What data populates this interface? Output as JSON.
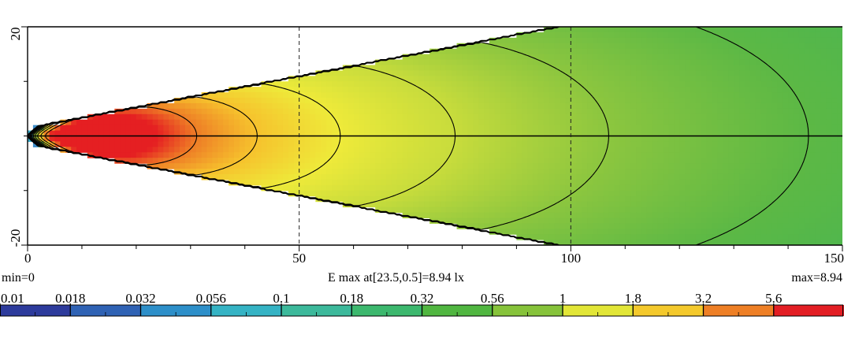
{
  "chart_data": {
    "type": "heatmap",
    "title": "E max at[23.5,0.5]=8.94 lx",
    "min_label": "min=0",
    "max_label": "max=8.94",
    "max_value": 8.94,
    "max_location": [
      23.5,
      0.5
    ],
    "unit": "lx",
    "x_axis": {
      "range": [
        0,
        150
      ],
      "ticks": [
        0,
        50,
        100,
        150
      ],
      "minor_step": 10,
      "grid_dashed_at": [
        50,
        100
      ]
    },
    "y_axis": {
      "range": [
        -20,
        20
      ],
      "ticks": [
        -20,
        20
      ],
      "tick_labels": [
        "-20",
        "20"
      ],
      "minor_step": 10,
      "label_rotation": "vertical"
    },
    "center_line": true,
    "contour_levels": [
      0.018,
      0.032,
      0.056,
      0.1,
      0.18,
      0.32,
      0.56,
      1,
      1.8,
      3.2,
      5.6
    ],
    "colorbar": {
      "labels": [
        "0.01",
        "0.018",
        "0.032",
        "0.056",
        "0.1",
        "0.18",
        "0.32",
        "0.56",
        "1",
        "1.8",
        "3.2",
        "5.6"
      ],
      "colors": [
        "#2d3b9c",
        "#2f62b4",
        "#2d8fc9",
        "#35b3c4",
        "#3cb99b",
        "#3cb86e",
        "#50b640",
        "#86c33a",
        "#e2e637",
        "#f4c92c",
        "#ee7f25",
        "#e31e24"
      ]
    },
    "colormap": {
      "stops": [
        [
          0.018,
          "#3f8fca"
        ],
        [
          0.032,
          "#35b0c7"
        ],
        [
          0.056,
          "#3ab8a3"
        ],
        [
          0.1,
          "#3cb97d"
        ],
        [
          0.18,
          "#45b655"
        ],
        [
          0.32,
          "#5cb845"
        ],
        [
          0.56,
          "#8cc63f"
        ],
        [
          1,
          "#c8dc3c"
        ],
        [
          1.8,
          "#eeea3a"
        ],
        [
          3.2,
          "#f6c22d"
        ],
        [
          5.6,
          "#ee7d26"
        ],
        [
          8.94,
          "#e51f22"
        ]
      ]
    }
  }
}
